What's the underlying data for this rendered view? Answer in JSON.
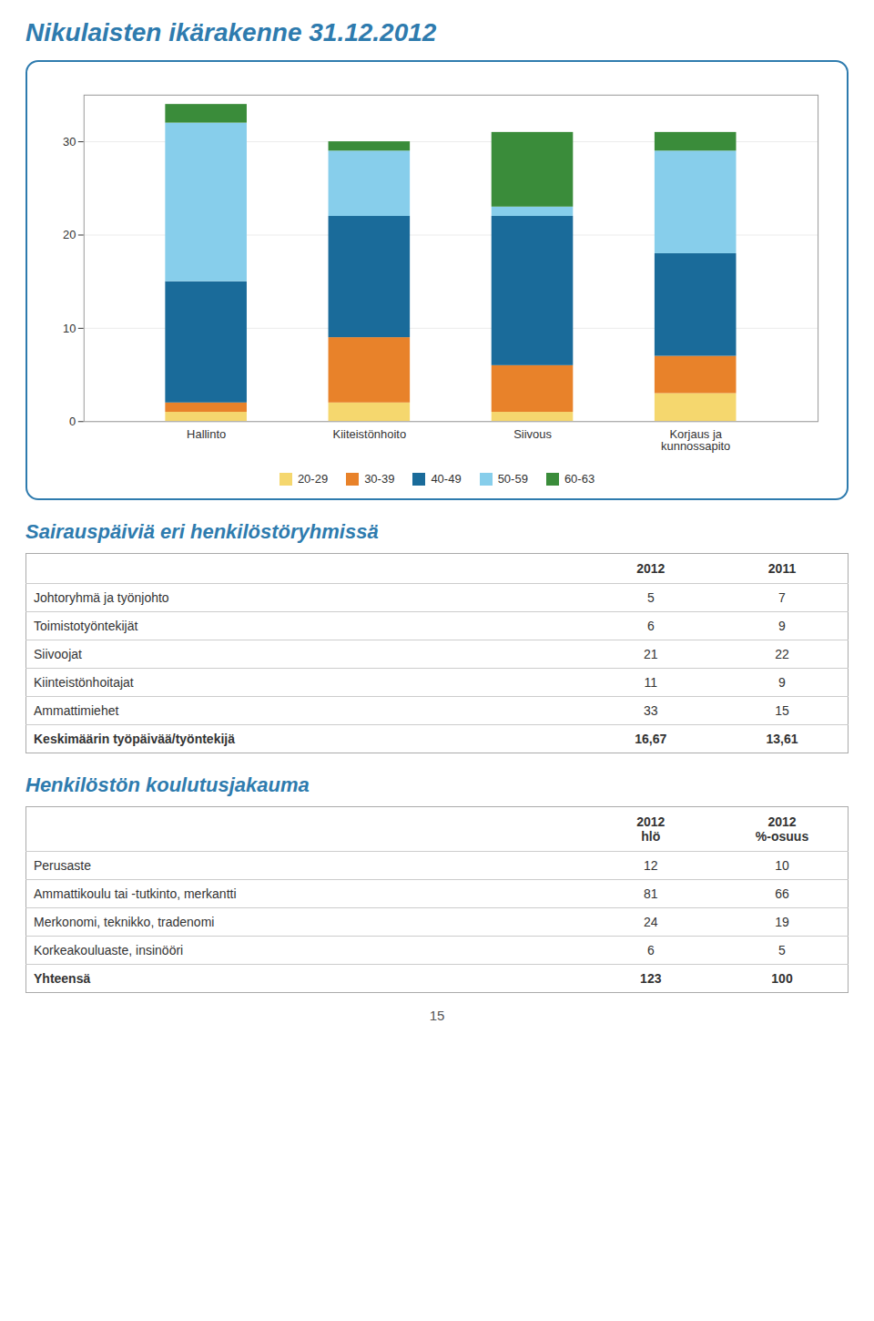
{
  "page_number": "15",
  "chart_data": [
    {
      "type": "bar",
      "title": "Nikulaisten ikärakenne 31.12.2012",
      "categories": [
        "Hallinto",
        "Kiiteistönhoito",
        "Siivous",
        "Korjaus ja\nkunnossapito"
      ],
      "series": [
        {
          "name": "20-29",
          "color": "#F5D76E",
          "values": [
            1,
            2,
            1,
            3
          ]
        },
        {
          "name": "30-39",
          "color": "#E8822A",
          "values": [
            1,
            7,
            5,
            4
          ]
        },
        {
          "name": "40-49",
          "color": "#1A6B9A",
          "values": [
            13,
            13,
            16,
            11
          ]
        },
        {
          "name": "50-59",
          "color": "#87CEEB",
          "values": [
            17,
            7,
            1,
            11
          ]
        },
        {
          "name": "60-63",
          "color": "#3A8C3A",
          "values": [
            2,
            1,
            8,
            2
          ]
        }
      ],
      "stacked": true,
      "ylim": [
        0,
        35
      ],
      "yticks": [
        0,
        10,
        20,
        30
      ],
      "grid": true,
      "legend": "bottom"
    },
    {
      "type": "table",
      "title": "Sairauspäiviä eri henkilöstöryhmissä",
      "columns": [
        "2012",
        "2011"
      ],
      "rows": [
        {
          "label": "Johtoryhmä ja työnjohto",
          "values": [
            5,
            7
          ]
        },
        {
          "label": "Toimistotyöntekijät",
          "values": [
            6,
            9
          ]
        },
        {
          "label": "Siivoojat",
          "values": [
            21,
            22
          ]
        },
        {
          "label": "Kiinteistönhoitajat",
          "values": [
            11,
            9
          ]
        },
        {
          "label": "Ammattimiehet",
          "values": [
            33,
            15
          ]
        },
        {
          "label": "Keskimäärin työpäivää/työntekijä",
          "values": [
            16.67,
            13.61
          ],
          "value_labels": [
            "16,67",
            "13,61"
          ]
        }
      ]
    },
    {
      "type": "table",
      "title": "Henkilöstön koulutusjakauma",
      "columns": [
        "2012\nhlö",
        "2012\n%-osuus"
      ],
      "rows": [
        {
          "label": "Perusaste",
          "values": [
            12,
            10
          ]
        },
        {
          "label": "Ammattikoulu tai -tutkinto, merkantti",
          "values": [
            81,
            66
          ]
        },
        {
          "label": "Merkonomi, teknikko, tradenomi",
          "values": [
            24,
            19
          ]
        },
        {
          "label": "Korkeakouluaste, insinööri",
          "values": [
            6,
            5
          ]
        },
        {
          "label": "Yhteensä",
          "values": [
            123,
            100
          ]
        }
      ]
    }
  ]
}
